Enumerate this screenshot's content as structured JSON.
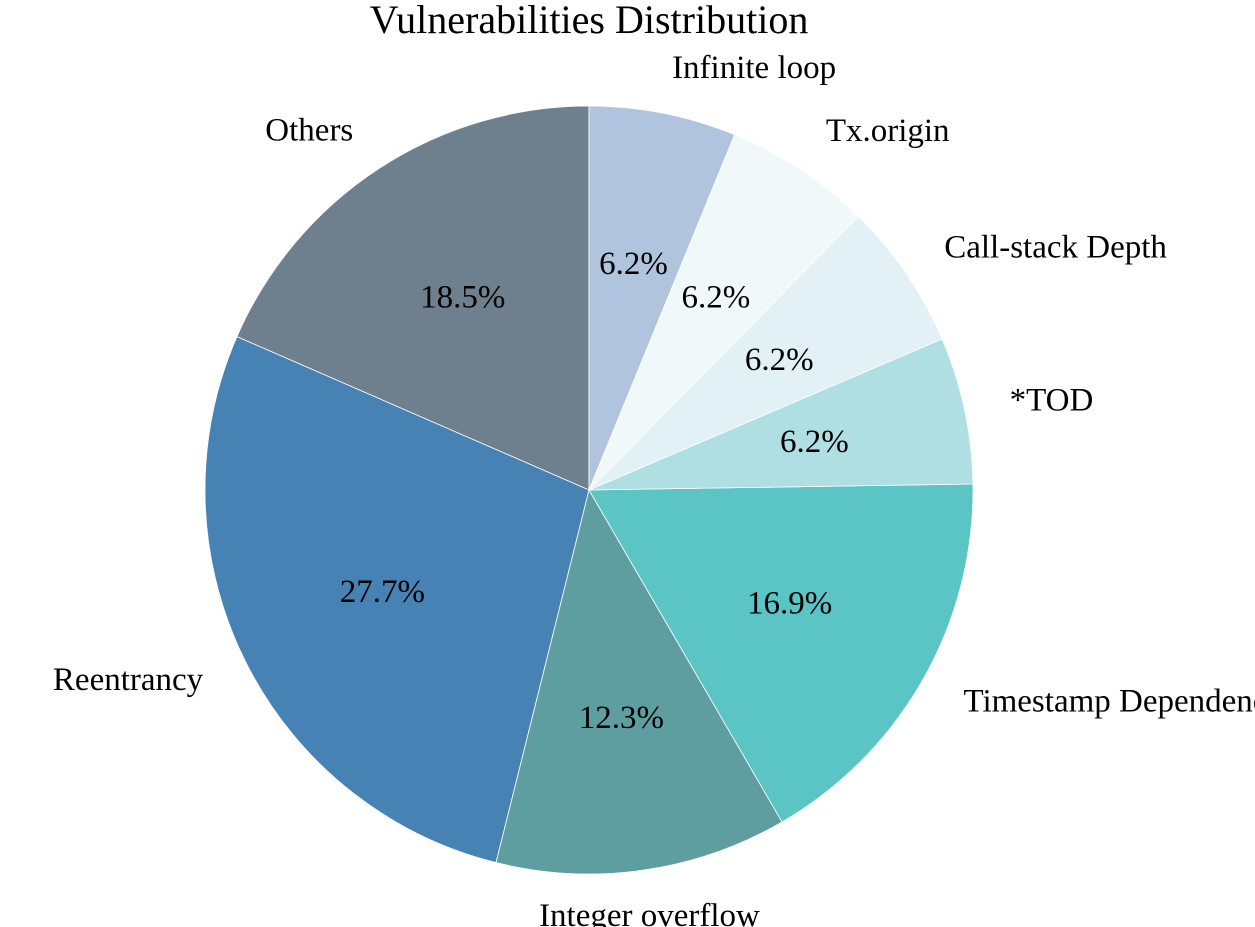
{
  "chart_data": {
    "type": "pie",
    "title": "Vulnerabilities Distribution",
    "slices": [
      {
        "label": "Others",
        "value": 18.5,
        "pct_label": "18.5%",
        "color": "#6E7F8D"
      },
      {
        "label": "Reentrancy",
        "value": 27.7,
        "pct_label": "27.7%",
        "color": "#4682B4"
      },
      {
        "label": "Integer overflow",
        "value": 12.3,
        "pct_label": "12.3%",
        "color": "#5F9EA0"
      },
      {
        "label": "Timestamp Dependency",
        "value": 16.9,
        "pct_label": "16.9%",
        "color": "#5BC4C4"
      },
      {
        "label": "*TOD",
        "value": 6.2,
        "pct_label": "6.2%",
        "color": "#B0DFE3"
      },
      {
        "label": "Call-stack Depth",
        "value": 6.2,
        "pct_label": "6.2%",
        "color": "#E1F1F6"
      },
      {
        "label": "Tx.origin",
        "value": 6.2,
        "pct_label": "6.2%",
        "color": "#F0F8FA"
      },
      {
        "label": "Infinite loop",
        "value": 6.2,
        "pct_label": "6.2%",
        "color": "#B0C4DE"
      }
    ],
    "start_direction": "top, counterclockwise"
  }
}
